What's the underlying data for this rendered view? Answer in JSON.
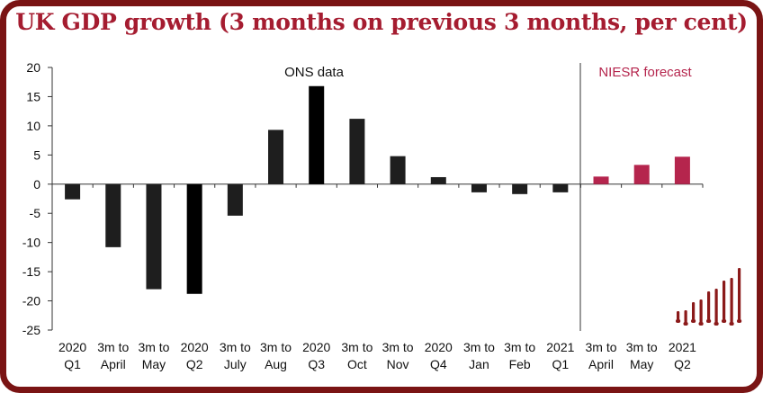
{
  "chart_data": {
    "type": "bar",
    "title": "UK GDP growth (3 months on previous 3 months, per cent)",
    "categories": [
      [
        "2020",
        "Q1"
      ],
      [
        "3m to",
        "April"
      ],
      [
        "3m to",
        "May"
      ],
      [
        "2020",
        "Q2"
      ],
      [
        "3m to",
        "July"
      ],
      [
        "3m to",
        "Aug"
      ],
      [
        "2020",
        "Q3"
      ],
      [
        "3m to",
        "Oct"
      ],
      [
        "3m to",
        "Nov"
      ],
      [
        "2020",
        "Q4"
      ],
      [
        "3m to",
        "Jan"
      ],
      [
        "3m to",
        "Feb"
      ],
      [
        "2021",
        "Q1"
      ],
      [
        "3m to",
        "April"
      ],
      [
        "3m to",
        "May"
      ],
      [
        "2021",
        "Q2"
      ]
    ],
    "values": [
      -2.6,
      -10.8,
      -18.0,
      -18.8,
      -5.4,
      9.3,
      16.8,
      11.2,
      4.8,
      1.2,
      -1.4,
      -1.7,
      -1.4,
      1.3,
      3.3,
      4.7
    ],
    "segments": [
      {
        "name": "ONS data",
        "start": 0,
        "end": 12,
        "color": "#1e1e1e",
        "emphasis_color": "#000000"
      },
      {
        "name": "NIESR forecast",
        "start": 13,
        "end": 15,
        "color": "#b5254d"
      }
    ],
    "emphasized_indices": [
      3,
      6
    ],
    "ylim": [
      -25,
      20
    ],
    "yticks": [
      20,
      15,
      10,
      5,
      0,
      -5,
      -10,
      -15,
      -20,
      -25
    ],
    "xlabel": "",
    "ylabel": "",
    "grid": false,
    "annotations": {
      "ons": "ONS data",
      "niesr": "NIESR forecast"
    },
    "colors": {
      "frame": "#7a1414",
      "title": "#a51c30",
      "logo": "#8b1a1a"
    }
  },
  "logo": "niesr-bars-logo"
}
